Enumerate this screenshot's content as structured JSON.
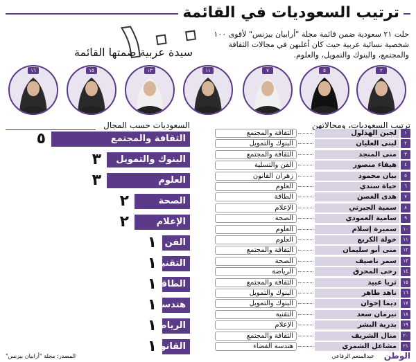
{
  "title": "ترتيب السعوديات في القائمة",
  "big_number": "١٠٠",
  "big_caption": "سيدة عربية ضمتها القائمة",
  "intro": "حلت ٢١ سعودية ضمن قائمة مجلة \"أرابيان بيزنس\" لأقوى ١٠٠ شخصية نسائية عربية حيث كان أغلبهن في مجالات الثقافة والمجتمع، والبنوك والتمويل، والعلوم.",
  "portraits": [
    "٢",
    "٥",
    "٧",
    "١١",
    "١٣",
    "١٥",
    "١٦"
  ],
  "left_section_title": "السعوديات حسب المجال",
  "right_section_title": "ترتيب السعوديات، ومجالاتهن",
  "colors": {
    "accent": "#5b3a87",
    "name_bg": "#d9d2e2"
  },
  "chart_data": {
    "type": "bar",
    "categories": [
      "الثقافة والمجتمع",
      "البنوك والتمويل",
      "العلوم",
      "الصحة",
      "الإعلام",
      "الفن والتسلية",
      "التقنية",
      "الطاقة",
      "هندسة الفضاء",
      "الرياضة",
      "القانون"
    ],
    "values": [
      5,
      3,
      3,
      2,
      2,
      1,
      1,
      1,
      1,
      1,
      1
    ],
    "value_labels": [
      "٥",
      "٣",
      "٣",
      "٢",
      "٢",
      "١",
      "١",
      "١",
      "١",
      "١",
      "١"
    ],
    "xlim": [
      0,
      5
    ]
  },
  "ranking": [
    {
      "num": "١",
      "name": "لجين الهذلول",
      "field": "الثقافة والمجتمع"
    },
    {
      "num": "٢",
      "name": "لبنى العليان",
      "field": "البنوك والتمويل"
    },
    {
      "num": "٣",
      "name": "منى المنجد",
      "field": "الثقافة والمجتمع"
    },
    {
      "num": "٤",
      "name": "هيفاء منصور",
      "field": "الفن والتسلية"
    },
    {
      "num": "٥",
      "name": "بيان محمود",
      "field": "زهران القانون"
    },
    {
      "num": "٦",
      "name": "حياة سندي",
      "field": "العلوم"
    },
    {
      "num": "٧",
      "name": "هدى الغصن",
      "field": "الطاقة"
    },
    {
      "num": "٨",
      "name": "سمية الجبرتي",
      "field": "الإعلام"
    },
    {
      "num": "٩",
      "name": "سامية العمودي",
      "field": "الصحة"
    },
    {
      "num": "١٠",
      "name": "سميرة إسلام",
      "field": "العلوم"
    },
    {
      "num": "١١",
      "name": "خولة الكريع",
      "field": "العلوم"
    },
    {
      "num": "١٢",
      "name": "منى أبو سليمان",
      "field": "الثقافة والمجتمع"
    },
    {
      "num": "١٣",
      "name": "سمر ناصيف",
      "field": "الصحة"
    },
    {
      "num": "١٤",
      "name": "رحى المحرق",
      "field": "الرياضة"
    },
    {
      "num": "١٥",
      "name": "ثريا عبيد",
      "field": "الثقافة والمجتمع"
    },
    {
      "num": "١٦",
      "name": "ناهد طاهر",
      "field": "البنوك والتمويل"
    },
    {
      "num": "١٧",
      "name": "ديما إخوان",
      "field": "البنوك والتمويل"
    },
    {
      "num": "١٨",
      "name": "نيرمان سعد",
      "field": "التقنية"
    },
    {
      "num": "١٩",
      "name": "بدرية البشر",
      "field": "الإعلام"
    },
    {
      "num": "٢٠",
      "name": "منال الشريف",
      "field": "الثقافة والمجتمع"
    },
    {
      "num": "٢١",
      "name": "مشاعل الشمري",
      "field": "هندسة الفضاء"
    }
  ],
  "source": "المصدر: مجلة \"أرابيان بيزنس\"",
  "author": "عبدالمنعم الرفاعي",
  "logo": "الوطن"
}
